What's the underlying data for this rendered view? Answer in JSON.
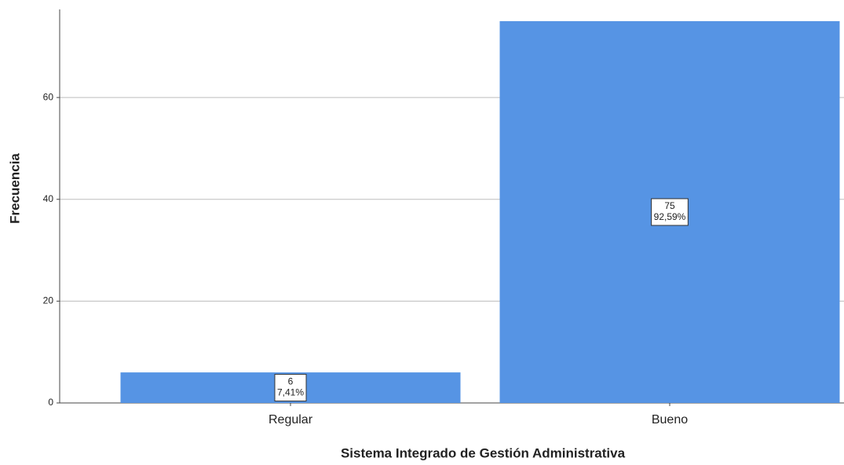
{
  "chart_data": {
    "type": "bar",
    "x_label": "Sistema Integrado de Gestión Administrativa",
    "y_label": "Frecuencia",
    "categories": [
      "Regular",
      "Bueno"
    ],
    "values": [
      6,
      75
    ],
    "percentage_labels": [
      "7,41%",
      "92,59%"
    ],
    "color": "#5694e4",
    "ylim": [
      0,
      77.3
    ],
    "yticks": [
      0,
      20,
      40,
      60
    ],
    "grid": true
  }
}
